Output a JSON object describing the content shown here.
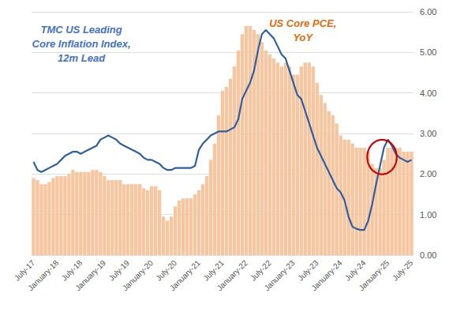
{
  "chart_data": {
    "type": "bar",
    "annotations": [
      {
        "text": "TMC US Leading\nCore Inflation Index,\n12m Lead",
        "color": "#4472c4"
      },
      {
        "text": "US Core PCE,\nYoY",
        "color": "#e36b0a"
      }
    ],
    "categories": [
      "July-17",
      null,
      null,
      null,
      null,
      null,
      "January-18",
      null,
      null,
      null,
      null,
      null,
      "July-18",
      null,
      null,
      null,
      null,
      null,
      "January-19",
      null,
      null,
      null,
      null,
      null,
      "July-19",
      null,
      null,
      null,
      null,
      null,
      "January-20",
      null,
      null,
      null,
      null,
      null,
      "July-20",
      null,
      null,
      null,
      null,
      null,
      "January-21",
      null,
      null,
      null,
      null,
      null,
      "July-21",
      null,
      null,
      null,
      null,
      null,
      "January-22",
      null,
      null,
      null,
      null,
      null,
      "July-22",
      null,
      null,
      null,
      null,
      null,
      "January-23",
      null,
      null,
      null,
      null,
      null,
      "July-23",
      null,
      null,
      null,
      null,
      null,
      "January-24",
      null,
      null,
      null,
      null,
      null,
      "July-24",
      null,
      null,
      null,
      null,
      null,
      "January-25",
      null,
      null,
      null,
      null,
      null,
      "July-25"
    ],
    "series": [
      {
        "type": "bar",
        "color": "#f5c6a0",
        "values": [
          1.9,
          1.85,
          1.75,
          1.75,
          1.8,
          1.9,
          1.95,
          1.95,
          1.95,
          2.0,
          2.1,
          2.05,
          2.05,
          2.05,
          2.05,
          2.1,
          2.1,
          2.05,
          1.95,
          1.85,
          1.85,
          1.85,
          1.85,
          1.75,
          1.75,
          1.75,
          1.75,
          1.75,
          1.65,
          1.6,
          1.7,
          1.7,
          1.6,
          0.95,
          0.85,
          0.95,
          1.2,
          1.35,
          1.4,
          1.4,
          1.4,
          1.5,
          1.6,
          1.75,
          1.95,
          2.35,
          2.75,
          3.45,
          4.05,
          4.15,
          4.35,
          4.65,
          5.05,
          5.45,
          5.65,
          5.65,
          5.55,
          5.45,
          5.25,
          5.05,
          4.95,
          4.85,
          4.75,
          4.65,
          4.75,
          4.65,
          4.45,
          4.45,
          4.65,
          4.75,
          4.75,
          4.65,
          4.25,
          3.95,
          3.75,
          3.55,
          3.45,
          3.25,
          2.95,
          2.85,
          2.85,
          2.75,
          2.65,
          2.65,
          2.65,
          2.55,
          2.25,
          2.15,
          2.15,
          2.35,
          2.65,
          2.65,
          2.65,
          2.65,
          2.55,
          2.55,
          2.55
        ]
      },
      {
        "type": "line",
        "color": "#2e5fa3",
        "values": [
          2.3,
          2.1,
          2.05,
          2.1,
          2.15,
          2.2,
          2.25,
          2.35,
          2.45,
          2.5,
          2.55,
          2.55,
          2.5,
          2.55,
          2.6,
          2.65,
          2.7,
          2.85,
          2.9,
          2.95,
          2.9,
          2.85,
          2.75,
          2.7,
          2.65,
          2.6,
          2.55,
          2.5,
          2.4,
          2.35,
          2.35,
          2.3,
          2.25,
          2.15,
          2.1,
          2.1,
          2.15,
          2.15,
          2.15,
          2.15,
          2.15,
          2.2,
          2.6,
          2.75,
          2.85,
          2.95,
          3.0,
          3.05,
          3.05,
          3.05,
          3.1,
          3.15,
          3.35,
          3.85,
          4.05,
          4.25,
          4.55,
          5.05,
          5.45,
          5.55,
          5.45,
          5.35,
          5.15,
          4.95,
          4.85,
          4.55,
          4.25,
          3.95,
          3.85,
          3.55,
          3.25,
          2.95,
          2.65,
          2.45,
          2.25,
          2.05,
          1.85,
          1.65,
          1.55,
          1.35,
          0.95,
          0.7,
          0.65,
          0.62,
          0.62,
          0.85,
          1.25,
          1.75,
          2.2,
          2.65,
          2.85,
          2.7,
          2.5,
          2.4,
          2.35,
          2.3,
          2.35
        ]
      }
    ],
    "highlight": {
      "x": 88.5,
      "y": 2.42,
      "width": 7.5,
      "height": 0.85,
      "color": "#cc0000"
    },
    "ylim": [
      0.0,
      6.0
    ],
    "yticks": [
      {
        "value": 0,
        "label": "0.00"
      },
      {
        "value": 1,
        "label": "1.00"
      },
      {
        "value": 2,
        "label": "2.00"
      },
      {
        "value": 3,
        "label": "3.00"
      },
      {
        "value": 4,
        "label": "4.00"
      },
      {
        "value": 5,
        "label": "5.00"
      },
      {
        "value": 6,
        "label": "6.00"
      }
    ],
    "grid": true
  }
}
